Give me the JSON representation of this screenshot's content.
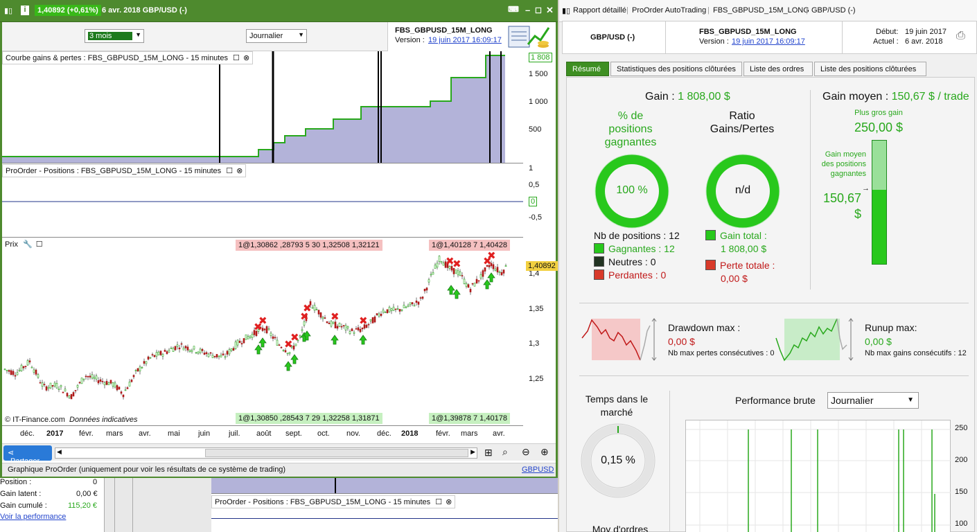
{
  "left_window": {
    "price_badge": "1,40892 (+0,61%)",
    "title": "6 avr. 2018 GBP/USD (-)",
    "period_select": "3 mois",
    "interval_select": "Journalier",
    "system_name": "FBS_GBPUSD_15M_LONG",
    "version_label": "Version :",
    "version_date": "19 juin 2017 16:09:17",
    "pane1_title": "Courbe gains & pertes : FBS_GBPUSD_15M_LONG - 15 minutes",
    "pane1_ticks": [
      "1 808",
      "1 500",
      "1 000",
      "500"
    ],
    "pane2_title": "ProOrder - Positions : FBS_GBPUSD_15M_LONG - 15 minutes",
    "pane2_ticks": [
      "1",
      "0,5",
      "0",
      "-0,5"
    ],
    "pane3_title": "Prix",
    "pane3_ticks": [
      "1,4",
      "1,35",
      "1,3",
      "1,25"
    ],
    "current_price": "1,40892",
    "top_labels": [
      "1@1,30862",
      ",28793",
      "5",
      "30",
      "1,32508",
      "1,32121",
      "1@1,40128",
      "7",
      "1,40428"
    ],
    "bottom_labels": [
      "1@1,30850",
      ",28543",
      "7",
      "29",
      "1,32258",
      "1,31871",
      "1@1,39878",
      "7",
      "1,40178"
    ],
    "watermark_brand": "© IT-Finance.com",
    "watermark_note": "Données indicatives",
    "months": [
      "déc.",
      "2017",
      "févr.",
      "mars",
      "avr.",
      "mai",
      "juin",
      "juil.",
      "août",
      "sept.",
      "oct.",
      "nov.",
      "déc.",
      "2018",
      "févr.",
      "mars",
      "avr."
    ],
    "share_button": "Partager",
    "status_text": "Graphique ProOrder (uniquement pour voir les résultats de ce système de trading)",
    "status_link": "GBPUSD"
  },
  "bottom_left": {
    "position_label": "Position :",
    "position_value": "0",
    "latent_label": "Gain latent :",
    "latent_value": "0,00 €",
    "cumul_label": "Gain cumulé :",
    "cumul_value": "115,20 €",
    "perf_link": "Voir la performance",
    "pane_title": "ProOrder - Positions : FBS_GBPUSD_15M_LONG - 15 minutes"
  },
  "right_window": {
    "title_items": [
      "Rapport détaillé",
      "ProOrder AutoTrading",
      "FBS_GBPUSD_15M_LONG",
      "GBP/USD (-)"
    ],
    "instrument": "GBP/USD (-)",
    "system_name": "FBS_GBPUSD_15M_LONG",
    "version_label": "Version :",
    "version_date": "19 juin 2017 16:09:17",
    "debut_label": "Début:",
    "debut_value": "19 juin 2017",
    "actuel_label": "Actuel :",
    "actuel_value": "6 avr. 2018",
    "tabs": [
      "Résumé",
      "Statistiques des positions clôturées",
      "Liste des ordres",
      "Liste des positions clôturées"
    ],
    "gain_label": "Gain :",
    "gain_value": "1 808,00 $",
    "pct_title": "% de positions gagnantes",
    "pct_value": "100 %",
    "ratio_title": "Ratio Gains/Pertes",
    "ratio_value": "n/d",
    "nb_positions": "Nb de positions : 12",
    "gagnantes": "Gagnantes : 12",
    "neutres": "Neutres : 0",
    "perdantes": "Perdantes : 0",
    "gain_total_label": "Gain total :",
    "gain_total_value": "1 808,00 $",
    "perte_totale_label": "Perte totale :",
    "perte_totale_value": "0,00 $",
    "gain_moyen_label": "Gain moyen :",
    "gain_moyen_value": "150,67 $ / trade",
    "plus_gros_label": "Plus gros gain",
    "plus_gros_value": "250,00 $",
    "gain_moyen_pos_label": "Gain moyen des positions gagnantes",
    "gain_moyen_pos_value": "150,67 $",
    "drawdown_label": "Drawdown max :",
    "drawdown_value": "0,00 $",
    "drawdown_sub": "Nb max pertes consécutives : 0",
    "runup_label": "Runup max:",
    "runup_value": "0,00 $",
    "runup_sub": "Nb max gains consécutifs : 12",
    "temps_label": "Temps dans le marché",
    "temps_value": "0,15 %",
    "perf_label": "Performance brute",
    "perf_select": "Journalier",
    "perf_ticks": [
      "250",
      "200",
      "150",
      "100"
    ],
    "moy_label": "Moy d'ordres"
  },
  "colors": {
    "accent_green": "#28a81c",
    "title_green": "#4e8a2e",
    "loss_red": "#c01818",
    "equity_fill": "#b3b3d9"
  }
}
